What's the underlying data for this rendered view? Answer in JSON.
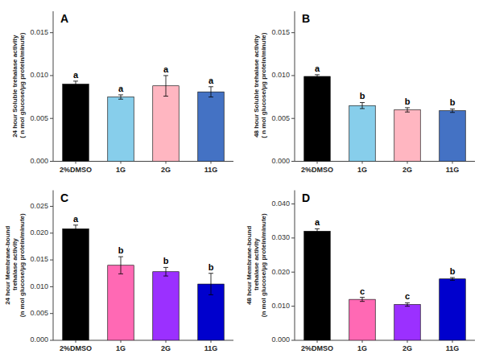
{
  "chart_data": [
    {
      "type": "bar",
      "title": "A",
      "ylabel": "24 hour Soluble trehalase activity\n ( n mol glucose/μg protein/minute)",
      "categories": [
        "2%DMSO",
        "1G",
        "2G",
        "11G"
      ],
      "values": [
        0.009,
        0.0075,
        0.0088,
        0.0081
      ],
      "errors": [
        0.00035,
        0.00025,
        0.0012,
        0.0006
      ],
      "colors": [
        "#000000",
        "#87CEEB",
        "#FFB6C1",
        "#4472C4"
      ],
      "annotations": [
        {
          "text": "a",
          "category": "2%DMSO"
        },
        {
          "text": "a",
          "category": "1G"
        },
        {
          "text": "a",
          "category": "2G"
        },
        {
          "text": "a",
          "category": "11G"
        }
      ],
      "ylim": [
        0,
        0.0175
      ],
      "yticks": [
        {
          "value": 0.0,
          "label": "0.000"
        },
        0.005,
        {
          "value": 0.01,
          "label": "0.010"
        },
        0.015
      ],
      "grid": false
    },
    {
      "type": "bar",
      "title": "B",
      "ylabel": "48 hour Soluble trehalase activity\n ( n mol glucose/μg protein/minute)",
      "categories": [
        "2%DMSO",
        "1G",
        "2G",
        "11G"
      ],
      "values": [
        0.0099,
        0.0065,
        0.006,
        0.0059
      ],
      "errors": [
        0.0002,
        0.00035,
        0.00025,
        0.0002
      ],
      "colors": [
        "#000000",
        "#87CEEB",
        "#FFB6C1",
        "#4472C4"
      ],
      "annotations": [
        {
          "text": "a",
          "category": "2%DMSO"
        },
        {
          "text": "b",
          "category": "1G"
        },
        {
          "text": "b",
          "category": "2G"
        },
        {
          "text": "b",
          "category": "11G"
        }
      ],
      "ylim": [
        0,
        0.0175
      ],
      "yticks": [
        {
          "value": 0.0,
          "label": "0.000"
        },
        0.005,
        {
          "value": 0.01,
          "label": "0.010"
        },
        0.015
      ],
      "grid": false
    },
    {
      "type": "bar",
      "title": "C",
      "ylabel": "24 hour Membrane-bound\n trehalase activity\n(n mol glucose/μg protein/minute)",
      "categories": [
        "2%DMSO",
        "1G",
        "2G",
        "11G"
      ],
      "values": [
        0.0208,
        0.014,
        0.0128,
        0.0105
      ],
      "errors": [
        0.0007,
        0.0016,
        0.0008,
        0.002
      ],
      "colors": [
        "#000000",
        "#FF69B4",
        "#9B30FF",
        "#0000CD"
      ],
      "annotations": [
        {
          "text": "a",
          "category": "2%DMSO"
        },
        {
          "text": "b",
          "category": "1G"
        },
        {
          "text": "b",
          "category": "2G"
        },
        {
          "text": "b",
          "category": "11G"
        }
      ],
      "ylim": [
        0,
        0.028
      ],
      "yticks": [
        {
          "value": 0.0,
          "label": "0.000"
        },
        0.005,
        {
          "value": 0.01,
          "label": "0.010"
        },
        0.015,
        {
          "value": 0.02,
          "label": "0.020"
        },
        0.025
      ],
      "grid": false
    },
    {
      "type": "bar",
      "title": "D",
      "ylabel": "48 hour Membrane-bound\n trehalase activity\n(n mol glucose/μg protein/minute)",
      "categories": [
        "2%DMSO",
        "1G",
        "2G",
        "11G"
      ],
      "values": [
        0.032,
        0.012,
        0.0105,
        0.018
      ],
      "errors": [
        0.0007,
        0.0006,
        0.0005,
        0.0004
      ],
      "colors": [
        "#000000",
        "#FF69B4",
        "#9B30FF",
        "#0000CD"
      ],
      "annotations": [
        {
          "text": "a",
          "category": "2%DMSO"
        },
        {
          "text": "c",
          "category": "1G"
        },
        {
          "text": "c",
          "category": "2G"
        },
        {
          "text": "b",
          "category": "11G"
        }
      ],
      "ylim": [
        0,
        0.044
      ],
      "yticks": [
        {
          "value": 0.0,
          "label": "0.000"
        },
        {
          "value": 0.01,
          "label": "0.010"
        },
        {
          "value": 0.02,
          "label": "0.020"
        },
        {
          "value": 0.03,
          "label": "0.030"
        },
        {
          "value": 0.04,
          "label": "0.040"
        }
      ],
      "grid": false
    }
  ]
}
